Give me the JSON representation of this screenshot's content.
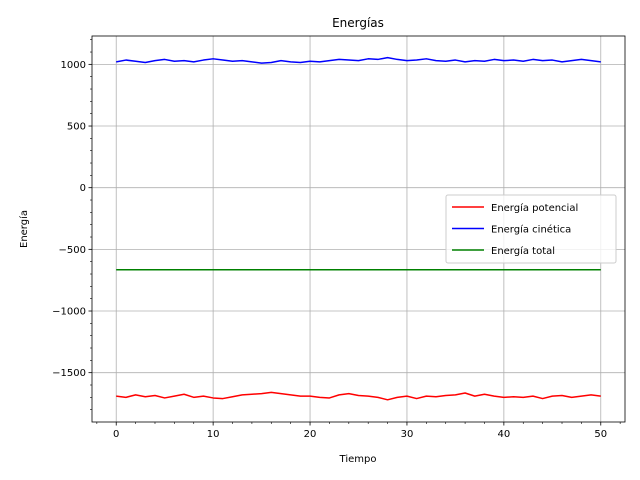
{
  "chart_data": {
    "type": "line",
    "title": "Energías",
    "xlabel": "Tiempo",
    "ylabel": "Energía",
    "xlim": [
      -2.5,
      52.5
    ],
    "ylim": [
      -1900,
      1230
    ],
    "xticks": [
      0,
      10,
      20,
      30,
      40,
      50
    ],
    "yticks": [
      -1500,
      -1000,
      -500,
      0,
      500,
      1000
    ],
    "grid": true,
    "legend_position": "center-right",
    "series": [
      {
        "name": "Energía potencial",
        "color": "#ff0000",
        "x": [
          0,
          1,
          2,
          3,
          4,
          5,
          6,
          7,
          8,
          9,
          10,
          11,
          12,
          13,
          14,
          15,
          16,
          17,
          18,
          19,
          20,
          21,
          22,
          23,
          24,
          25,
          26,
          27,
          28,
          29,
          30,
          31,
          32,
          33,
          34,
          35,
          36,
          37,
          38,
          39,
          40,
          41,
          42,
          43,
          44,
          45,
          46,
          47,
          48,
          49,
          50
        ],
        "values": [
          -1690,
          -1700,
          -1680,
          -1695,
          -1685,
          -1705,
          -1690,
          -1675,
          -1700,
          -1690,
          -1705,
          -1710,
          -1695,
          -1680,
          -1675,
          -1670,
          -1660,
          -1670,
          -1680,
          -1690,
          -1690,
          -1700,
          -1705,
          -1680,
          -1670,
          -1685,
          -1690,
          -1700,
          -1720,
          -1700,
          -1690,
          -1710,
          -1690,
          -1695,
          -1685,
          -1680,
          -1665,
          -1690,
          -1675,
          -1690,
          -1700,
          -1695,
          -1700,
          -1690,
          -1710,
          -1690,
          -1685,
          -1700,
          -1690,
          -1680,
          -1690
        ]
      },
      {
        "name": "Energía cinética",
        "color": "#0000ff",
        "x": [
          0,
          1,
          2,
          3,
          4,
          5,
          6,
          7,
          8,
          9,
          10,
          11,
          12,
          13,
          14,
          15,
          16,
          17,
          18,
          19,
          20,
          21,
          22,
          23,
          24,
          25,
          26,
          27,
          28,
          29,
          30,
          31,
          32,
          33,
          34,
          35,
          36,
          37,
          38,
          39,
          40,
          41,
          42,
          43,
          44,
          45,
          46,
          47,
          48,
          49,
          50
        ],
        "values": [
          1020,
          1035,
          1025,
          1015,
          1030,
          1040,
          1025,
          1030,
          1020,
          1035,
          1045,
          1035,
          1025,
          1030,
          1020,
          1010,
          1015,
          1030,
          1020,
          1015,
          1025,
          1020,
          1030,
          1040,
          1035,
          1030,
          1045,
          1040,
          1055,
          1040,
          1030,
          1035,
          1045,
          1030,
          1025,
          1035,
          1020,
          1030,
          1025,
          1040,
          1030,
          1035,
          1025,
          1040,
          1030,
          1035,
          1020,
          1030,
          1040,
          1030,
          1020
        ]
      },
      {
        "name": "Energía total",
        "color": "#008000",
        "x": [
          0,
          50
        ],
        "values": [
          -665,
          -665
        ]
      }
    ]
  }
}
